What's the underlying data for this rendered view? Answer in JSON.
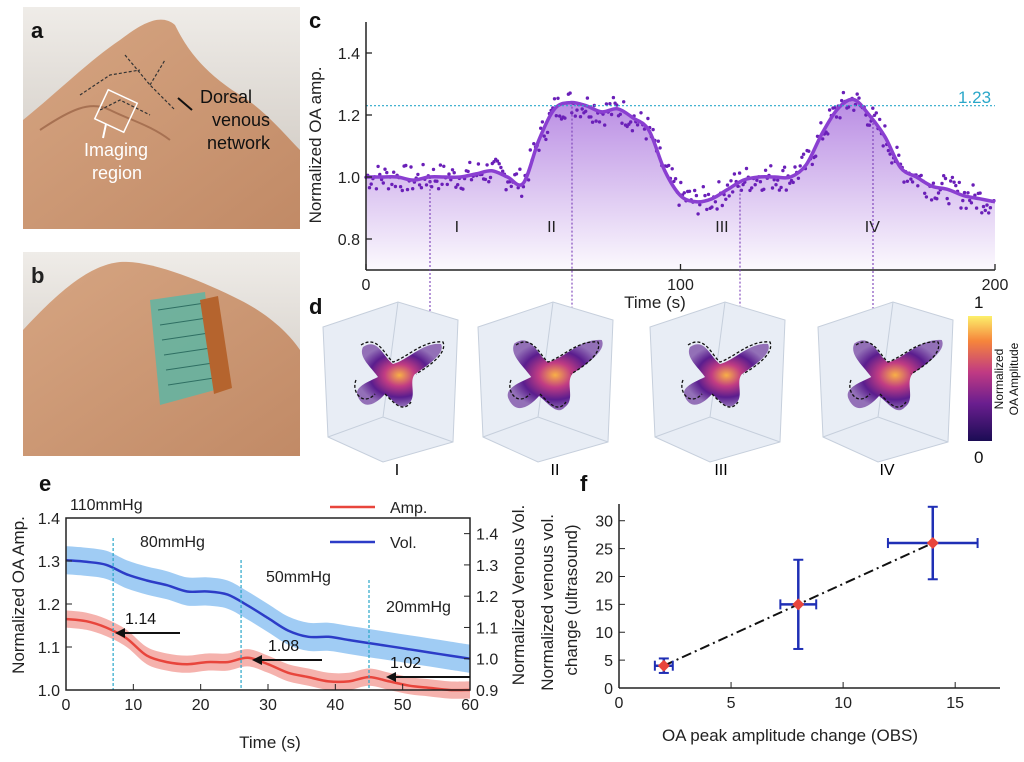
{
  "panels": {
    "a": {
      "label": "a",
      "annotations": {
        "dorsal": [
          "Dorsal",
          "venous",
          "network"
        ],
        "imaging": [
          "Imaging",
          "region"
        ]
      }
    },
    "b": {
      "label": "b"
    },
    "c": {
      "label": "c",
      "phases": [
        "I",
        "II",
        "III",
        "IV"
      ],
      "reference_value_text": "1.23"
    },
    "d": {
      "label": "d",
      "colorbar": {
        "label_line1": "Normalized",
        "label_line2": "OA Amplitude",
        "max_label": "1",
        "min_label": "0"
      },
      "phase_labels": [
        "I",
        "II",
        "III",
        "IV"
      ]
    },
    "e": {
      "label": "e",
      "pressure_labels": [
        "110mmHg",
        "80mmHg",
        "50mmHg",
        "20mmHg"
      ],
      "marker_values": [
        "1.14",
        "1.08",
        "1.02"
      ],
      "legend": [
        "Amp.",
        "Vol."
      ]
    },
    "f": {
      "label": "f"
    }
  },
  "colors": {
    "purple": "#8a3fd1",
    "purple_dark": "#6a1fb8",
    "cyan_ref": "#2aa7c9",
    "red": "#e8453c",
    "red_band": "#f3a59f",
    "blue": "#2c3cc7",
    "blue_band": "#8fc3f2",
    "errbar_blue": "#1f2fb5",
    "marker_red": "#e8453c"
  },
  "chart_data": [
    {
      "id": "c",
      "type": "line",
      "title": "",
      "xlabel": "Time (s)",
      "ylabel": "Normalized OA amp.",
      "xlim": [
        0,
        200
      ],
      "ylim": [
        0.7,
        1.5
      ],
      "xticks": [
        0,
        100,
        200
      ],
      "yticks": [
        0.8,
        1.0,
        1.2,
        1.4
      ],
      "reference_line": 1.23,
      "series": [
        {
          "name": "Normalized OA amp.",
          "x": [
            0,
            5,
            10,
            15,
            20,
            25,
            30,
            35,
            40,
            45,
            50,
            55,
            60,
            65,
            70,
            75,
            80,
            85,
            90,
            95,
            100,
            105,
            110,
            115,
            120,
            125,
            130,
            135,
            140,
            145,
            150,
            155,
            160,
            165,
            170,
            175,
            180,
            185,
            190,
            195,
            200
          ],
          "values": [
            1.0,
            1.0,
            1.0,
            0.99,
            1.0,
            1.0,
            1.0,
            1.01,
            1.02,
            1.0,
            0.98,
            1.12,
            1.22,
            1.24,
            1.23,
            1.21,
            1.22,
            1.19,
            1.15,
            1.02,
            0.94,
            0.92,
            0.93,
            0.96,
            0.99,
            1.0,
            1.0,
            1.0,
            1.04,
            1.14,
            1.22,
            1.25,
            1.2,
            1.13,
            1.03,
            1.0,
            0.97,
            0.96,
            0.94,
            0.93,
            0.92
          ]
        }
      ],
      "annotations": [
        "I",
        "II",
        "III",
        "IV"
      ]
    },
    {
      "id": "e",
      "type": "line",
      "xlabel": "Time (s)",
      "ylabel_left": "Normalized OA Amp.",
      "ylabel_right": "Normalized Venous Vol.",
      "xlim": [
        0,
        60
      ],
      "ylim_left": [
        1.0,
        1.4
      ],
      "ylim_right": [
        0.9,
        1.45
      ],
      "xticks": [
        0,
        10,
        20,
        30,
        40,
        50,
        60
      ],
      "yticks_left": [
        1.0,
        1.1,
        1.2,
        1.3,
        1.4
      ],
      "yticks_right": [
        0.9,
        1.0,
        1.1,
        1.2,
        1.3,
        1.4
      ],
      "vlines": [
        7,
        26,
        45
      ],
      "series": [
        {
          "name": "Amp.",
          "axis": "left",
          "x": [
            0,
            3,
            6,
            9,
            12,
            15,
            18,
            21,
            24,
            27,
            30,
            33,
            36,
            39,
            42,
            45,
            48,
            51,
            54,
            57,
            60
          ],
          "values": [
            1.165,
            1.16,
            1.145,
            1.12,
            1.08,
            1.065,
            1.06,
            1.065,
            1.065,
            1.075,
            1.06,
            1.04,
            1.03,
            1.02,
            1.02,
            1.03,
            1.02,
            1.01,
            1.005,
            1.0,
            1.0
          ],
          "band": 0.02
        },
        {
          "name": "Vol.",
          "axis": "right",
          "x": [
            0,
            3,
            6,
            9,
            12,
            15,
            18,
            21,
            24,
            27,
            30,
            33,
            36,
            39,
            42,
            45,
            48,
            51,
            54,
            57,
            60
          ],
          "values": [
            1.315,
            1.31,
            1.3,
            1.27,
            1.25,
            1.235,
            1.215,
            1.215,
            1.205,
            1.17,
            1.13,
            1.09,
            1.07,
            1.07,
            1.06,
            1.05,
            1.04,
            1.03,
            1.02,
            1.01,
            1.0
          ],
          "band": 0.045
        }
      ],
      "annotations": [
        "110mmHg",
        "80mmHg",
        "50mmHg",
        "20mmHg",
        "1.14",
        "1.08",
        "1.02"
      ]
    },
    {
      "id": "f",
      "type": "scatter",
      "xlabel": "OA peak amplitude change (OBS)",
      "ylabel": "Normalized venous vol. change (ultrasound)",
      "xlim": [
        0,
        17
      ],
      "ylim": [
        0,
        33
      ],
      "xticks": [
        0,
        5,
        10,
        15
      ],
      "yticks": [
        0,
        5,
        10,
        15,
        20,
        25,
        30
      ],
      "points": [
        {
          "x": 2,
          "y": 4,
          "xerr": 0.4,
          "yerr": 1.3
        },
        {
          "x": 8,
          "y": 15,
          "xerr": 0.8,
          "yerr": 8
        },
        {
          "x": 14,
          "y": 26,
          "xerr": 2,
          "yerr": 6.5
        }
      ],
      "fit_line": {
        "x": [
          2,
          14
        ],
        "y": [
          4,
          26
        ],
        "style": "dash-dot"
      }
    }
  ]
}
